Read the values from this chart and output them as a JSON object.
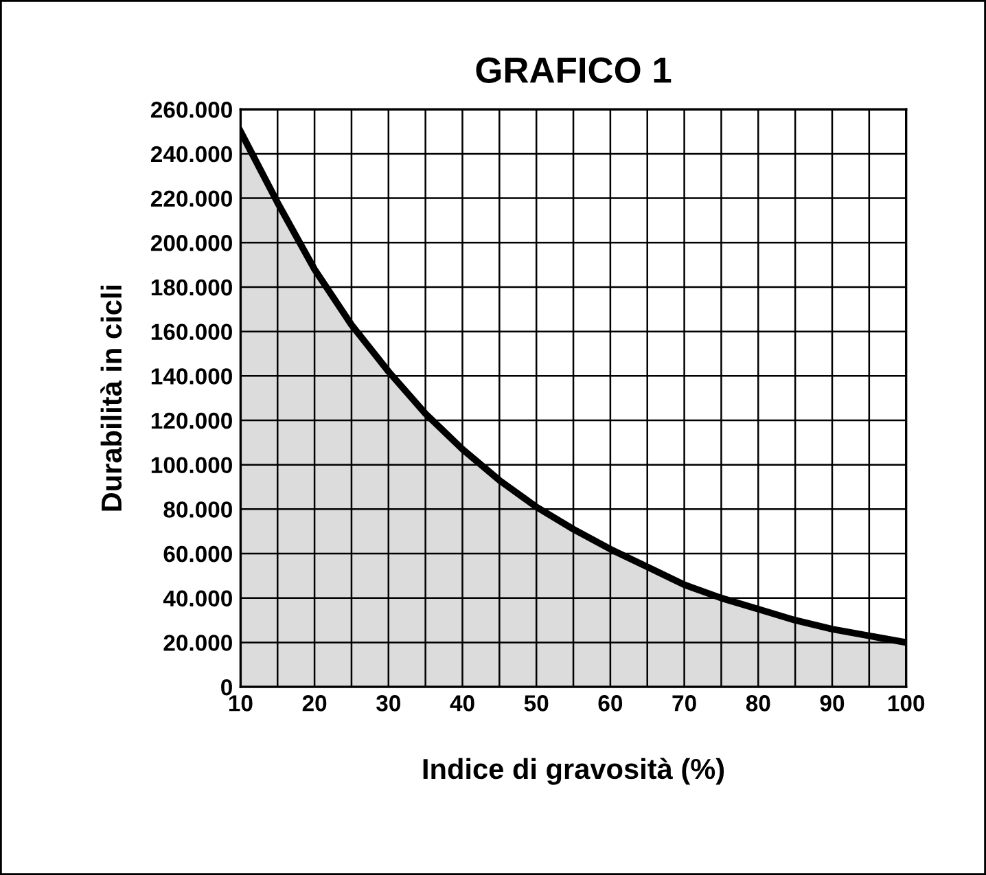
{
  "chart_data": {
    "type": "area",
    "title": "GRAFICO 1",
    "xlabel": "Indice di gravosità (%)",
    "ylabel": "Durabilità in cicli",
    "x": [
      10,
      15,
      20,
      25,
      30,
      35,
      40,
      45,
      50,
      55,
      60,
      65,
      70,
      75,
      80,
      85,
      90,
      95,
      100
    ],
    "series": [
      {
        "color": "#000000",
        "values": [
          250000,
          218000,
          188000,
          163000,
          142000,
          123000,
          107000,
          93000,
          81000,
          71000,
          62000,
          54000,
          46000,
          40000,
          35000,
          30000,
          26000,
          23000,
          20000
        ]
      }
    ],
    "xlim": [
      10,
      100
    ],
    "ylim": [
      0,
      260000
    ],
    "xticks": [
      10,
      {
        "value": 15,
        "label": null
      },
      20,
      {
        "value": 25,
        "label": null
      },
      30,
      {
        "value": 35,
        "label": null
      },
      40,
      {
        "value": 45,
        "label": null
      },
      50,
      {
        "value": 55,
        "label": null
      },
      60,
      {
        "value": 65,
        "label": null
      },
      70,
      {
        "value": 75,
        "label": null
      },
      80,
      {
        "value": 85,
        "label": null
      },
      90,
      {
        "value": 95,
        "label": null
      },
      100
    ],
    "yticks": [
      0,
      {
        "value": 20000,
        "label": "20.000"
      },
      {
        "value": 40000,
        "label": "40.000"
      },
      {
        "value": 60000,
        "label": "60.000"
      },
      {
        "value": 80000,
        "label": "80.000"
      },
      {
        "value": 100000,
        "label": "100.000"
      },
      {
        "value": 120000,
        "label": "120.000"
      },
      {
        "value": 140000,
        "label": "140.000"
      },
      {
        "value": 160000,
        "label": "160.000"
      },
      {
        "value": 180000,
        "label": "180.000"
      },
      {
        "value": 200000,
        "label": "200.000"
      },
      {
        "value": 220000,
        "label": "220.000"
      },
      {
        "value": 240000,
        "label": "240.000"
      },
      {
        "value": 260000,
        "label": "260.000"
      }
    ],
    "grid": true
  }
}
